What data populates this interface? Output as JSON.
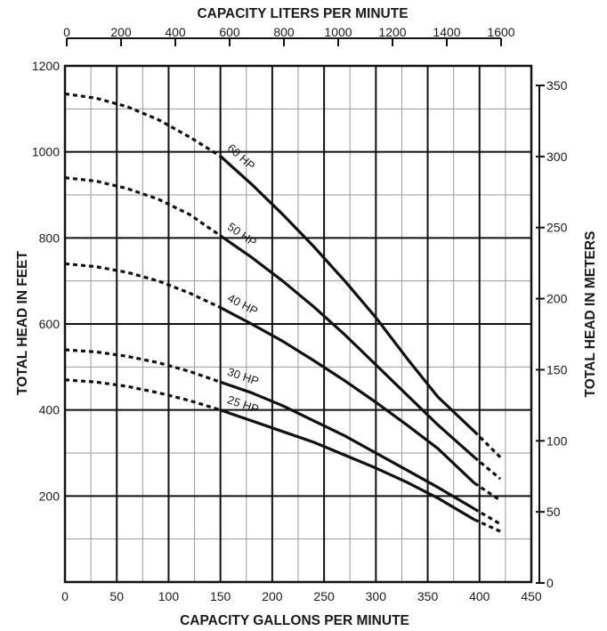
{
  "chart_data": {
    "type": "line",
    "xlabel": "CAPACITY GALLONS PER MINUTE",
    "ylabel": "TOTAL HEAD IN FEET",
    "x2label": "CAPACITY LITERS PER MINUTE",
    "y2label": "TOTAL HEAD IN METERS",
    "xlim": [
      0,
      450
    ],
    "ylim": [
      0,
      1200
    ],
    "x2lim": [
      0,
      1700
    ],
    "y2lim": [
      0,
      365
    ],
    "x_ticks": [
      0,
      50,
      100,
      150,
      200,
      250,
      300,
      350,
      400,
      450
    ],
    "y_ticks": [
      200,
      400,
      600,
      800,
      1000,
      1200
    ],
    "x2_ticks": [
      0,
      200,
      400,
      600,
      800,
      1000,
      1200,
      1400,
      1600
    ],
    "y2_ticks": [
      0,
      50,
      100,
      150,
      200,
      250,
      300,
      350
    ],
    "grid": true,
    "series": [
      {
        "name": "60 HP",
        "label": "60 HP",
        "dashed_start": [
          [
            0,
            1135
          ],
          [
            30,
            1125
          ],
          [
            60,
            1105
          ],
          [
            90,
            1075
          ],
          [
            120,
            1035
          ],
          [
            150,
            990
          ]
        ],
        "solid": [
          [
            150,
            990
          ],
          [
            180,
            925
          ],
          [
            210,
            855
          ],
          [
            240,
            780
          ],
          [
            270,
            700
          ],
          [
            300,
            615
          ],
          [
            330,
            520
          ],
          [
            360,
            430
          ],
          [
            395,
            350
          ]
        ],
        "dashed_end": [
          [
            395,
            350
          ],
          [
            420,
            290
          ]
        ]
      },
      {
        "name": "50 HP",
        "label": "50 HP",
        "dashed_start": [
          [
            0,
            940
          ],
          [
            30,
            932
          ],
          [
            60,
            915
          ],
          [
            90,
            890
          ],
          [
            120,
            855
          ],
          [
            150,
            805
          ]
        ],
        "solid": [
          [
            150,
            805
          ],
          [
            180,
            755
          ],
          [
            210,
            700
          ],
          [
            240,
            640
          ],
          [
            270,
            575
          ],
          [
            300,
            505
          ],
          [
            330,
            435
          ],
          [
            360,
            365
          ],
          [
            395,
            290
          ]
        ],
        "dashed_end": [
          [
            395,
            290
          ],
          [
            420,
            240
          ]
        ]
      },
      {
        "name": "40 HP",
        "label": "40 HP",
        "dashed_start": [
          [
            0,
            740
          ],
          [
            30,
            733
          ],
          [
            60,
            720
          ],
          [
            90,
            700
          ],
          [
            120,
            672
          ],
          [
            150,
            638
          ]
        ],
        "solid": [
          [
            150,
            638
          ],
          [
            180,
            600
          ],
          [
            210,
            560
          ],
          [
            240,
            515
          ],
          [
            270,
            468
          ],
          [
            300,
            418
          ],
          [
            330,
            365
          ],
          [
            360,
            310
          ],
          [
            395,
            230
          ]
        ],
        "dashed_end": [
          [
            395,
            230
          ],
          [
            420,
            190
          ]
        ]
      },
      {
        "name": "30 HP",
        "label": "30 HP",
        "dashed_start": [
          [
            0,
            540
          ],
          [
            30,
            535
          ],
          [
            60,
            525
          ],
          [
            90,
            510
          ],
          [
            120,
            490
          ],
          [
            150,
            465
          ]
        ],
        "solid": [
          [
            150,
            465
          ],
          [
            180,
            440
          ],
          [
            210,
            410
          ],
          [
            240,
            375
          ],
          [
            270,
            340
          ],
          [
            300,
            300
          ],
          [
            330,
            260
          ],
          [
            360,
            220
          ],
          [
            395,
            170
          ]
        ],
        "dashed_end": [
          [
            395,
            170
          ],
          [
            420,
            135
          ]
        ]
      },
      {
        "name": "25 HP",
        "label": "25 HP",
        "dashed_start": [
          [
            0,
            470
          ],
          [
            30,
            465
          ],
          [
            60,
            455
          ],
          [
            90,
            440
          ],
          [
            120,
            422
          ],
          [
            150,
            400
          ]
        ],
        "solid": [
          [
            150,
            400
          ],
          [
            180,
            375
          ],
          [
            210,
            350
          ],
          [
            240,
            325
          ],
          [
            270,
            295
          ],
          [
            300,
            265
          ],
          [
            330,
            232
          ],
          [
            360,
            195
          ],
          [
            395,
            145
          ]
        ],
        "dashed_end": [
          [
            395,
            145
          ],
          [
            420,
            118
          ]
        ]
      }
    ]
  }
}
